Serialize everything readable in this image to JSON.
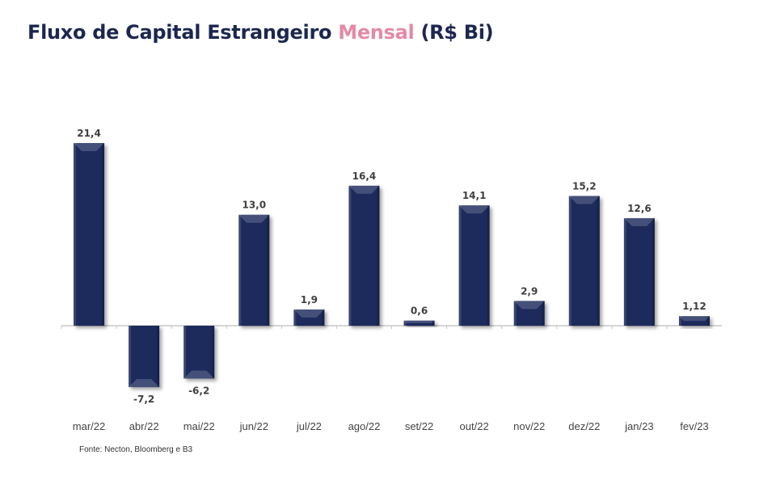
{
  "title": {
    "part1": "Fluxo de Capital Estrangeiro ",
    "highlight": "Mensal",
    "part2": " (R$ Bi)"
  },
  "source": "Fonte: Necton, Bloomberg e B3",
  "colors": {
    "bar": "#1f2a5c",
    "title": "#1c2750",
    "highlight": "#e48aa4",
    "label": "#404040"
  },
  "chart_data": {
    "type": "bar",
    "categories": [
      "mar/22",
      "abr/22",
      "mai/22",
      "jun/22",
      "jul/22",
      "ago/22",
      "set/22",
      "out/22",
      "nov/22",
      "dez/22",
      "jan/23",
      "fev/23"
    ],
    "values": [
      21.4,
      -7.2,
      -6.2,
      13.0,
      1.9,
      16.4,
      0.6,
      14.1,
      2.9,
      15.2,
      12.6,
      1.12
    ],
    "value_labels": [
      "21,4",
      "-7,2",
      "-6,2",
      "13,0",
      "1,9",
      "16,4",
      "0,6",
      "14,1",
      "2,9",
      "15,2",
      "12,6",
      "1,12"
    ],
    "title": "Fluxo de Capital Estrangeiro Mensal (R$ Bi)",
    "xlabel": "",
    "ylabel": "",
    "ylim": [
      -12,
      25
    ],
    "grid": false,
    "legend": "none"
  }
}
